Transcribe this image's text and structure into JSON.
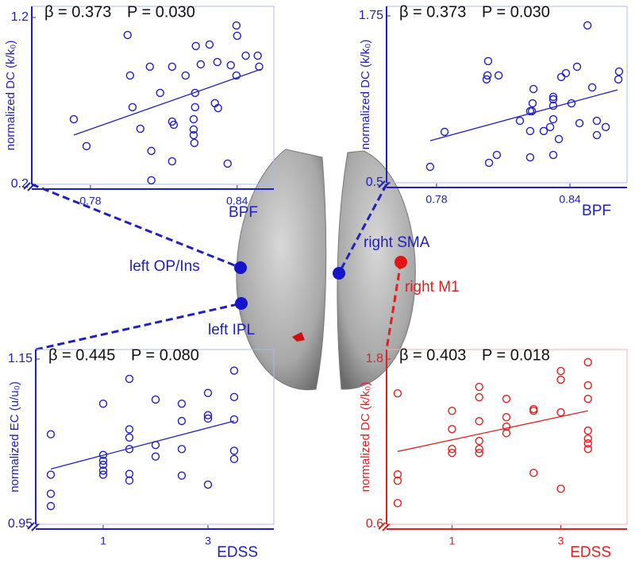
{
  "chart_data": [
    {
      "type": "scatter",
      "beta_label": "β = 0.373",
      "p_label": "P = 0.030",
      "ylabel": "normalized DC (k/k₀)",
      "xlabel": "BPF",
      "color": "#2020c0",
      "xlim": [
        0.756,
        0.855
      ],
      "ylim": [
        0.2,
        1.2
      ],
      "xticks": [
        0.78,
        0.84
      ],
      "yticks": [
        0.2,
        1.2
      ],
      "x": [
        0.7732,
        0.7784,
        0.7952,
        0.7962,
        0.7972,
        0.8004,
        0.8043,
        0.8049,
        0.8049,
        0.8085,
        0.8134,
        0.8134,
        0.8134,
        0.8141,
        0.8189,
        0.8222,
        0.8222,
        0.8222,
        0.8225,
        0.8228,
        0.8228,
        0.8231,
        0.8251,
        0.8287,
        0.8309,
        0.8319,
        0.8322,
        0.8361,
        0.8374,
        0.8397,
        0.84,
        0.8397,
        0.8435,
        0.8484,
        0.849
      ],
      "values": [
        0.59,
        0.429,
        1.095,
        0.852,
        0.662,
        0.533,
        0.905,
        0.4,
        0.224,
        0.748,
        0.905,
        0.576,
        0.338,
        0.557,
        0.852,
        0.59,
        0.529,
        0.495,
        0.448,
        0.748,
        0.662,
        1.029,
        0.919,
        1.038,
        0.686,
        0.933,
        0.657,
        0.324,
        0.914,
        1.152,
        1.09,
        0.852,
        0.971,
        0.971,
        0.905
      ],
      "fit": {
        "x": [
          0.7732,
          0.8497
        ],
        "y": [
          0.495,
          0.89
        ]
      }
    },
    {
      "type": "scatter",
      "beta_label": "β = 0.373",
      "p_label": "P = 0.030",
      "ylabel": "normalized DC (k/k₀)",
      "xlabel": "BPF",
      "color": "#2020c0",
      "xlim": [
        0.7575,
        0.8657
      ],
      "ylim": [
        0.5,
        1.75
      ],
      "xticks": [
        0.78,
        0.84
      ],
      "yticks": [
        0.5,
        1.75
      ],
      "x": [
        0.7771,
        0.7836,
        0.8036,
        0.8071,
        0.8025,
        0.8032,
        0.8029,
        0.8079,
        0.8175,
        0.8221,
        0.8221,
        0.8221,
        0.8229,
        0.8236,
        0.8232,
        0.8282,
        0.8311,
        0.8325,
        0.8325,
        0.8325,
        0.8325,
        0.8325,
        0.835,
        0.8361,
        0.8382,
        0.8407,
        0.8432,
        0.8443,
        0.8479,
        0.85,
        0.8521,
        0.8521,
        0.8561,
        0.8621,
        0.8618
      ],
      "values": [
        0.619,
        0.881,
        0.649,
        0.708,
        1.274,
        1.411,
        1.304,
        1.304,
        0.964,
        0.69,
        0.887,
        1.036,
        1.036,
        1.202,
        1.095,
        0.887,
        0.917,
        1.077,
        1.143,
        1.125,
        0.976,
        0.708,
        0.827,
        1.292,
        1.321,
        1.095,
        1.369,
        0.946,
        1.679,
        1.214,
        0.857,
        0.964,
        0.917,
        1.333,
        1.274
      ],
      "fit": {
        "x": [
          0.7771,
          0.8614
        ],
        "y": [
          0.815,
          1.196
        ]
      }
    },
    {
      "type": "scatter",
      "beta_label": "β = 0.445",
      "p_label": "P = 0.080",
      "ylabel": "normalized EC (u/u₀)",
      "xlabel": "EDSS",
      "color": "#2020c0",
      "xlim": [
        -0.288,
        4.258
      ],
      "ylim": [
        0.95,
        1.15
      ],
      "xticks": [
        1,
        3
      ],
      "yticks": [
        0.95,
        1.15
      ],
      "x": [
        0,
        0,
        0,
        0,
        1,
        1,
        1,
        1,
        1,
        1,
        1.5,
        1.5,
        1.5,
        1.5,
        1.5,
        1.5,
        2,
        2,
        2,
        2.5,
        2.5,
        2.5,
        2.5,
        3,
        3,
        3,
        3,
        3.5,
        3.5,
        3.5,
        3.5,
        3.5
      ],
      "values": [
        1.059,
        1.01,
        0.987,
        0.972,
        1.096,
        1.034,
        1.027,
        1.022,
        1.015,
        1.01,
        1.126,
        1.065,
        1.055,
        1.041,
        1.011,
        1.003,
        1.101,
        1.046,
        1.032,
        1.096,
        1.075,
        1.041,
        1.009,
        1.109,
        1.082,
        1.078,
        0.998,
        1.136,
        1.104,
        1.077,
        1.039,
        1.029
      ],
      "fit": {
        "x": [
          0,
          3.5
        ],
        "y": [
          1.017,
          1.075
        ]
      }
    },
    {
      "type": "scatter",
      "beta_label": "β = 0.403",
      "p_label": "P = 0.018",
      "ylabel": "normalized DC (k/k₀)",
      "xlabel": "EDSS",
      "color": "#e02020",
      "xlim": [
        -0.204,
        4.219
      ],
      "ylim": [
        0.6,
        1.8
      ],
      "xticks": [
        1,
        3
      ],
      "yticks": [
        0.6,
        1.8
      ],
      "x": [
        0,
        0,
        0,
        0,
        1,
        1,
        1,
        1,
        1.5,
        1.5,
        1.5,
        1.5,
        1.5,
        1.5,
        2,
        2,
        2,
        2,
        2.5,
        2.5,
        2.5,
        3,
        3,
        3,
        3,
        3.5,
        3.5,
        3.5,
        3.5,
        3.5,
        3.5,
        3.5
      ],
      "values": [
        1.551,
        0.962,
        0.916,
        0.754,
        1.424,
        1.291,
        1.147,
        1.118,
        1.598,
        1.523,
        1.349,
        1.205,
        1.147,
        1.118,
        1.511,
        1.378,
        1.309,
        1.262,
        1.436,
        1.424,
        0.973,
        1.713,
        1.65,
        1.413,
        0.858,
        1.777,
        1.609,
        1.511,
        1.28,
        1.222,
        1.187,
        1.147
      ],
      "fit": {
        "x": [
          0,
          3.5
        ],
        "y": [
          1.129,
          1.424
        ]
      }
    }
  ],
  "brain_labels": [
    "left OP/Ins",
    "left IPL",
    "right SMA",
    "right M1"
  ]
}
